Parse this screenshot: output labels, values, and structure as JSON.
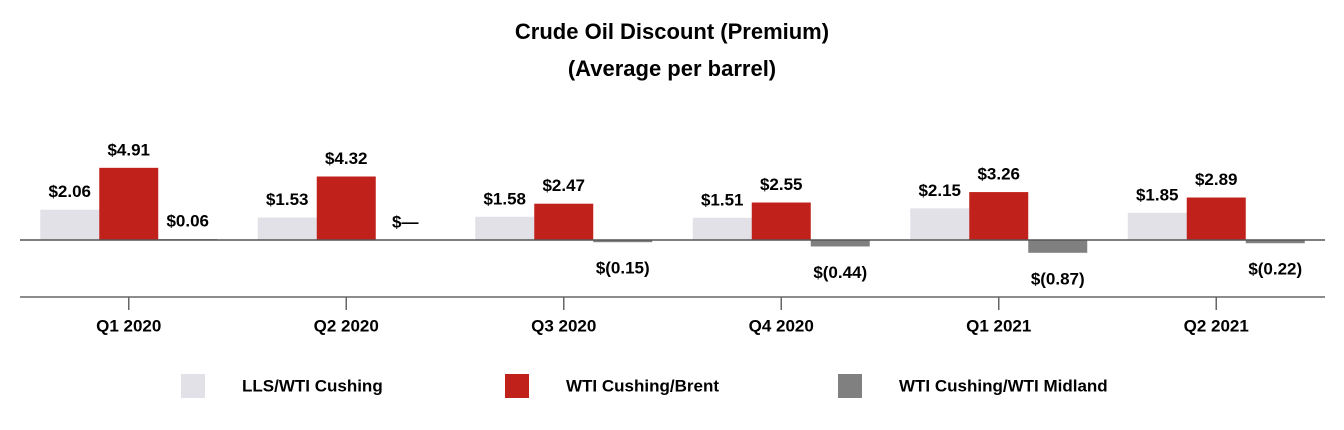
{
  "chart_data": {
    "type": "bar",
    "title": "Crude Oil Discount (Premium)",
    "subtitle": "(Average per barrel)",
    "categories": [
      "Q1 2020",
      "Q2 2020",
      "Q3 2020",
      "Q4 2020",
      "Q1 2021",
      "Q2 2021"
    ],
    "series": [
      {
        "name": "LLS/WTI Cushing",
        "color": "#e1e1e7",
        "values": [
          2.06,
          1.53,
          1.58,
          1.51,
          2.15,
          1.85
        ],
        "value_labels": [
          "$2.06",
          "$1.53",
          "$1.58",
          "$1.51",
          "$2.15",
          "$1.85"
        ]
      },
      {
        "name": "WTI Cushing/Brent",
        "color": "#c0211a",
        "values": [
          4.91,
          4.32,
          2.47,
          2.55,
          3.26,
          2.89
        ],
        "value_labels": [
          "$4.91",
          "$4.32",
          "$2.47",
          "$2.55",
          "$3.26",
          "$2.89"
        ]
      },
      {
        "name": "WTI Cushing/WTI Midland",
        "color": "#808080",
        "values": [
          0.06,
          0,
          -0.15,
          -0.44,
          -0.87,
          -0.22
        ],
        "value_labels": [
          "$0.06",
          "$—",
          "$(0.15)",
          "$(0.44)",
          "$(0.87)",
          "$(0.22)"
        ]
      }
    ]
  }
}
